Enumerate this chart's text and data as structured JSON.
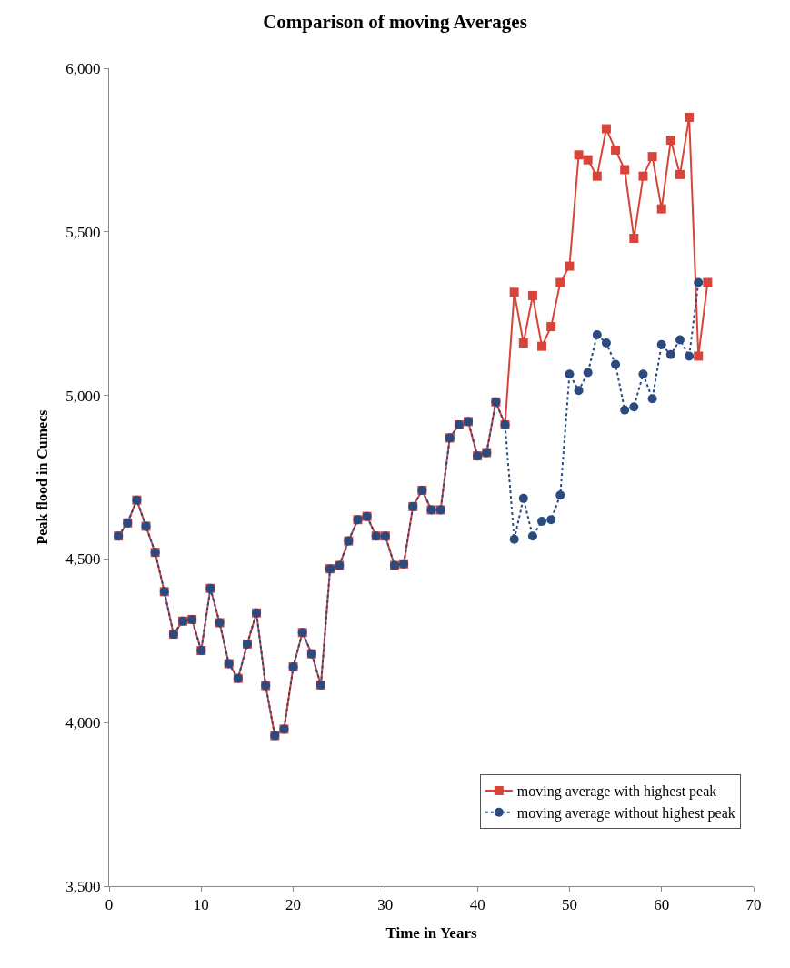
{
  "chart_data": {
    "type": "line",
    "title": "Comparison of moving Averages",
    "xlabel": "Time in Years",
    "ylabel": "Peak flood in Cumecs",
    "x": [
      1,
      2,
      3,
      4,
      5,
      6,
      7,
      8,
      9,
      10,
      11,
      12,
      13,
      14,
      15,
      16,
      17,
      18,
      19,
      20,
      21,
      22,
      23,
      24,
      25,
      26,
      27,
      28,
      29,
      30,
      31,
      32,
      33,
      34,
      35,
      36,
      37,
      38,
      39,
      40,
      41,
      42,
      43,
      44,
      45,
      46,
      47,
      48,
      49,
      50,
      51,
      52,
      53,
      54,
      55,
      56,
      57,
      58,
      59,
      60,
      61,
      62,
      63,
      64,
      65
    ],
    "series": [
      {
        "name": "moving average with highest peak",
        "color": "#d9443a",
        "marker": "square",
        "line_style": "solid",
        "values": [
          4570,
          4610,
          4680,
          4600,
          4520,
          4400,
          4270,
          4310,
          4315,
          4220,
          4410,
          4305,
          4180,
          4135,
          4240,
          4335,
          4113,
          3960,
          3980,
          4170,
          4275,
          4210,
          4115,
          4470,
          4480,
          4555,
          4620,
          4630,
          4570,
          4570,
          4480,
          4485,
          4660,
          4710,
          4650,
          4650,
          4870,
          4910,
          4920,
          4815,
          4825,
          4980,
          4910,
          5315,
          5160,
          5305,
          5150,
          5210,
          5345,
          5395,
          5735,
          5720,
          5670,
          5815,
          5750,
          5690,
          5480,
          5670,
          5730,
          5570,
          5780,
          5675,
          5850,
          5120,
          5345
        ]
      },
      {
        "name": "moving average without highest peak",
        "color": "#2b4b80",
        "marker": "circle",
        "line_style": "dotted",
        "values": [
          4570,
          4610,
          4680,
          4600,
          4520,
          4400,
          4270,
          4310,
          4315,
          4220,
          4410,
          4305,
          4180,
          4135,
          4240,
          4335,
          4113,
          3960,
          3980,
          4170,
          4275,
          4210,
          4115,
          4470,
          4480,
          4555,
          4620,
          4630,
          4570,
          4570,
          4480,
          4485,
          4660,
          4710,
          4650,
          4650,
          4870,
          4910,
          4920,
          4815,
          4825,
          4980,
          4910,
          4560,
          4685,
          4570,
          4615,
          4620,
          4695,
          5065,
          5015,
          5070,
          5185,
          5160,
          5095,
          4955,
          4965,
          5065,
          4990,
          5155,
          5125,
          5170,
          5120,
          5345,
          null
        ]
      }
    ],
    "xlim": [
      0,
      70
    ],
    "xticks": [
      0,
      10,
      20,
      30,
      40,
      50,
      60,
      70
    ],
    "ylim": [
      3500,
      6000
    ],
    "yticks": [
      {
        "value": 3500,
        "label": "3,500"
      },
      {
        "value": 4000,
        "label": "4,000"
      },
      {
        "value": 4500,
        "label": "4,500"
      },
      {
        "value": 5000,
        "label": "5,000"
      },
      {
        "value": 5500,
        "label": "5,500"
      },
      {
        "value": 6000,
        "label": "6,000"
      }
    ],
    "grid": false,
    "legend": "bottom right"
  }
}
